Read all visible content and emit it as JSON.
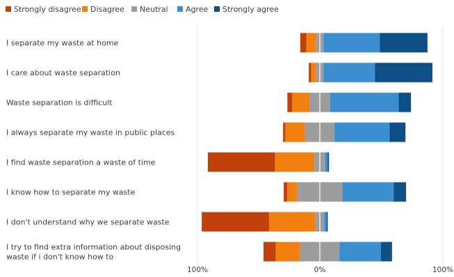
{
  "chart_data": {
    "type": "bar",
    "orientation": "horizontal-diverging-stacked",
    "title": "",
    "xlabel": "",
    "ylabel": "",
    "xlim": [
      -100,
      100
    ],
    "x_ticks": [
      "100%",
      "0%",
      "100%"
    ],
    "legend_position": "top-left",
    "grid": true,
    "categories": [
      "I separate my waste at home",
      "I care about waste separation",
      "Waste separation is difficult",
      "I always separate my waste in public places",
      "I find waste separation a waste of time",
      "I know how to separate my waste",
      "I don't understand why we separate waste",
      "I try to find extra information about disposing waste if i don't know how to"
    ],
    "series": [
      {
        "name": "Strongly disagree",
        "color": "#c0410c",
        "values": [
          5,
          2,
          4,
          2,
          55,
          3,
          55,
          10
        ]
      },
      {
        "name": "Disagree",
        "color": "#f28010",
        "values": [
          8,
          4,
          14,
          16,
          32,
          8,
          38,
          20
        ]
      },
      {
        "name": "Neutral",
        "color": "#9c9c9c",
        "values": [
          6,
          6,
          17,
          24,
          9,
          37,
          7,
          32
        ]
      },
      {
        "name": "Agree",
        "color": "#3b8fd1",
        "values": [
          46,
          42,
          56,
          45,
          2,
          42,
          2,
          34
        ]
      },
      {
        "name": "Strongly agree",
        "color": "#0e4f85",
        "values": [
          39,
          47,
          10,
          13,
          1,
          10,
          1,
          9
        ]
      }
    ]
  }
}
